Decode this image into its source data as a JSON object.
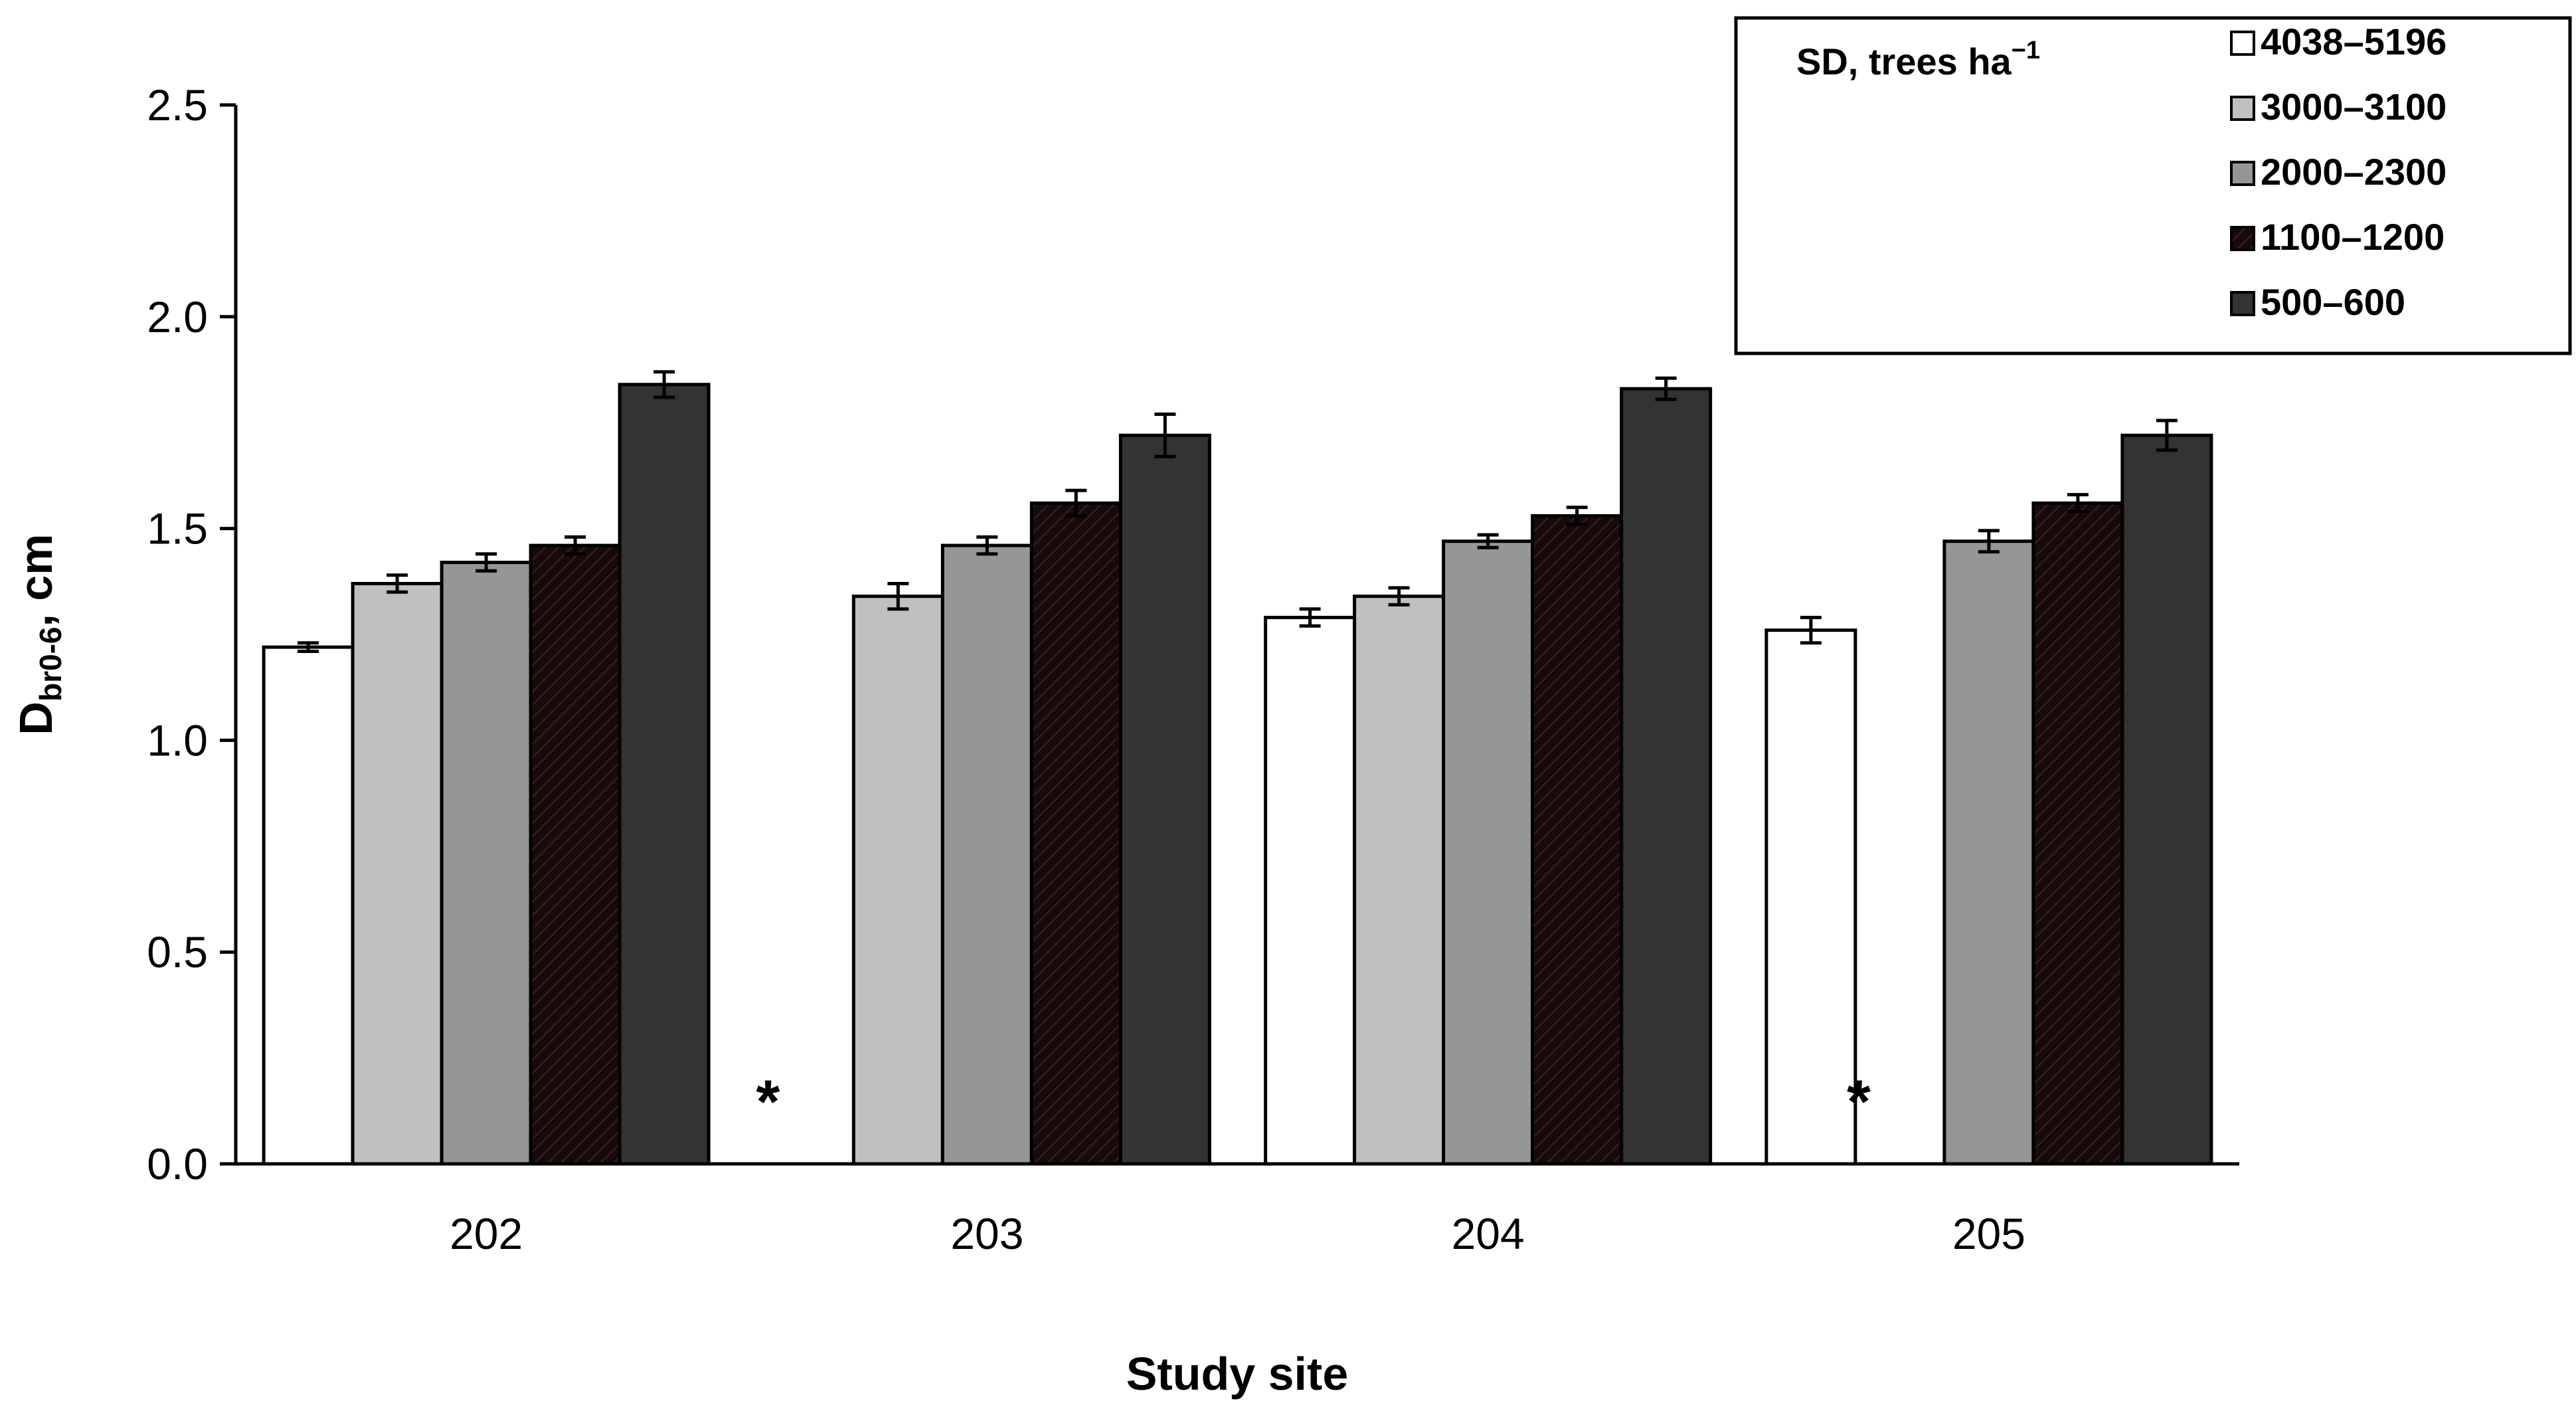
{
  "chart_data": {
    "type": "bar",
    "xlabel": "Study site",
    "ylabel_main": "D",
    "ylabel_sub": "br0-6",
    "ylabel_unit": ",  cm",
    "ylim": [
      0,
      2.5
    ],
    "yticks": [
      "0.0",
      "0.5",
      "1.0",
      "1.5",
      "2.0",
      "2.5"
    ],
    "categories": [
      "202",
      "203",
      "204",
      "205"
    ],
    "legend_title": "SD, trees ha",
    "legend_title_sup": "−1",
    "legend_position": "top-right",
    "missing_marker": "*",
    "series": [
      {
        "name": "4038–5196",
        "values": [
          1.22,
          null,
          1.29,
          1.26
        ],
        "errors": [
          0.01,
          null,
          0.02,
          0.03
        ],
        "color": "#ffffff"
      },
      {
        "name": "3000–3100",
        "values": [
          1.37,
          1.34,
          1.34,
          null
        ],
        "errors": [
          0.02,
          0.03,
          0.02,
          null
        ],
        "color": "#c0c0c0"
      },
      {
        "name": "2000–2300",
        "values": [
          1.42,
          1.46,
          1.47,
          1.47
        ],
        "errors": [
          0.02,
          0.02,
          0.015,
          0.025
        ],
        "color": "#969696"
      },
      {
        "name": "1100–1200",
        "values": [
          1.46,
          1.56,
          1.53,
          1.56
        ],
        "errors": [
          0.02,
          0.03,
          0.02,
          0.02
        ],
        "color": "#1c0d0d"
      },
      {
        "name": "500–600",
        "values": [
          1.84,
          1.72,
          1.83,
          1.72
        ],
        "errors": [
          0.03,
          0.05,
          0.025,
          0.035
        ],
        "color": "#333333"
      }
    ]
  }
}
